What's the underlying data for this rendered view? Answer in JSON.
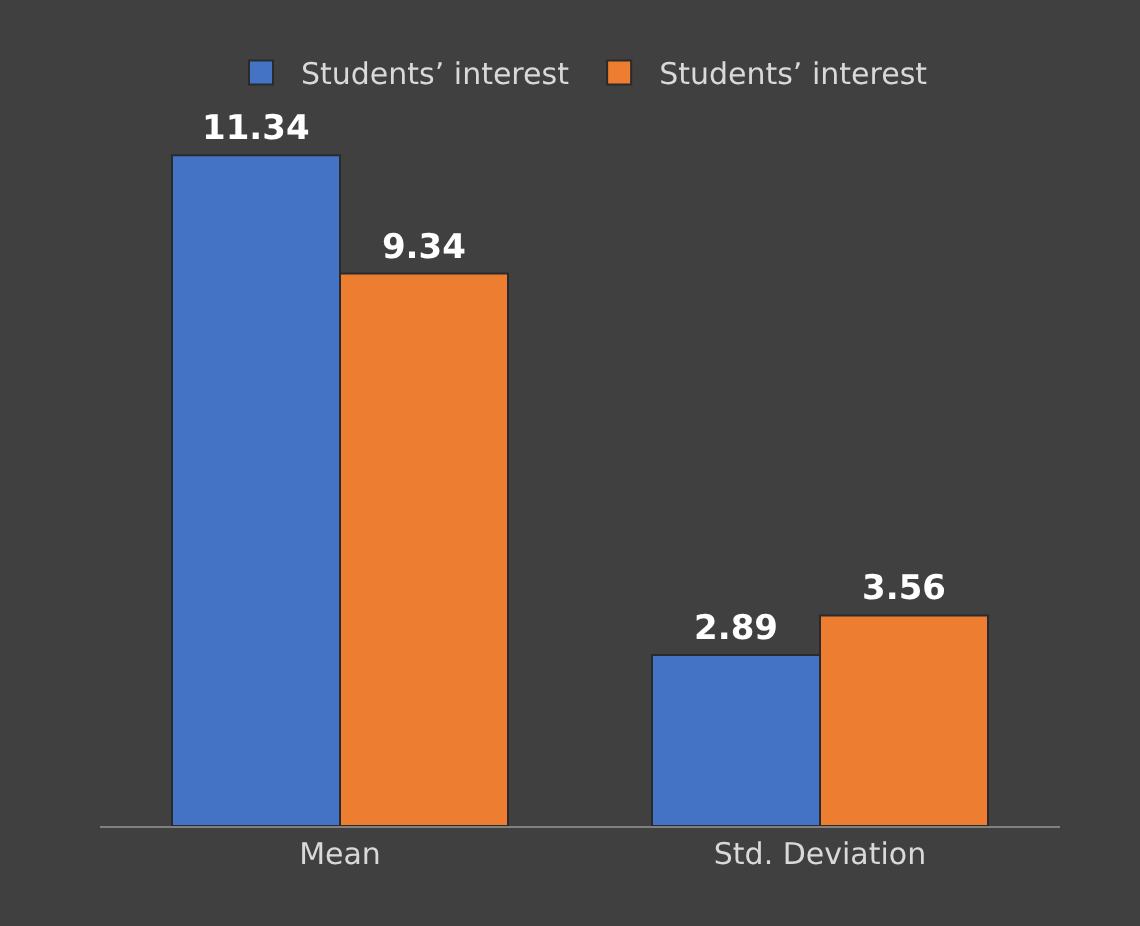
{
  "chart_data": {
    "type": "bar",
    "categories": [
      "Mean",
      "Std. Deviation"
    ],
    "series": [
      {
        "name": "Students’ interest",
        "color": "#4472c4",
        "values": [
          11.34,
          2.89
        ]
      },
      {
        "name": "Students’ interest",
        "color": "#ed7d31",
        "values": [
          9.34,
          3.56
        ]
      }
    ],
    "data_labels": true,
    "legend": "top",
    "grid": false
  }
}
